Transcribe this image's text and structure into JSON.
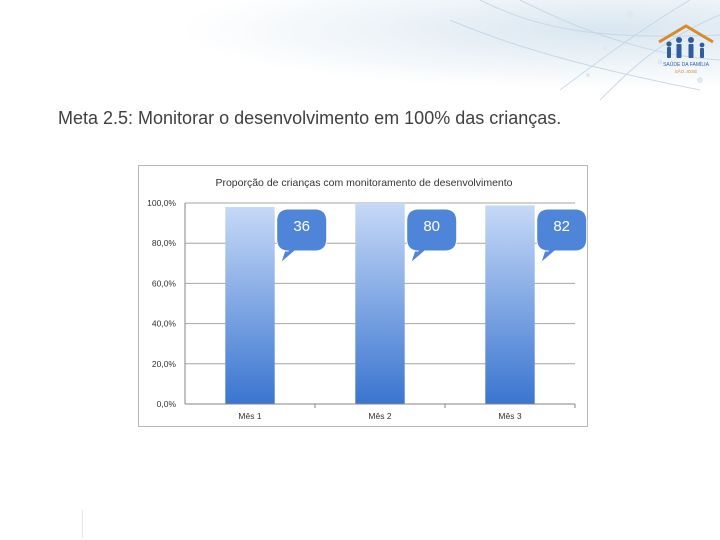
{
  "slide": {
    "title": "Meta 2.5: Monitorar o desenvolvimento em 100% das crianças."
  },
  "logo": {
    "text_line1": "SAÚDE DA FAMÍLIA",
    "text_line2": "SÃO JOSÉ"
  },
  "colors": {
    "bar_top": "#c6d9f7",
    "bar_bottom": "#3a75d0",
    "callout_fill": "#4f85d9",
    "callout_text": "#ffffff",
    "header_accent": "#c3d6e6"
  },
  "chart_data": {
    "type": "bar",
    "title": "Proporção de crianças com monitoramento de desenvolvimento",
    "categories": [
      "Mês 1",
      "Mês 2",
      "Mês 3"
    ],
    "values": [
      98.0,
      100.0,
      98.8
    ],
    "value_unit": "%",
    "callouts": [
      "36",
      "80",
      "82"
    ],
    "yticks": [
      "0,0%",
      "20,0%",
      "40,0%",
      "60,0%",
      "80,0%",
      "100,0%"
    ],
    "ylim": [
      0,
      100
    ],
    "grid": true,
    "legend": "none"
  }
}
